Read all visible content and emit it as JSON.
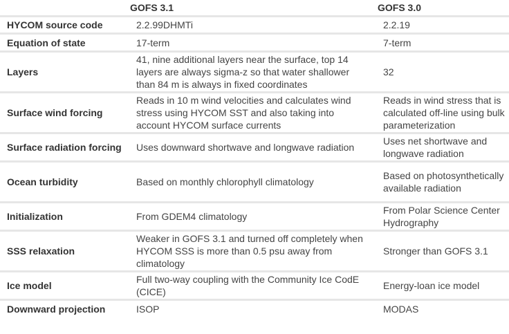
{
  "header": {
    "col1": "",
    "col2": "GOFS 3.1",
    "col3": "GOFS 3.0"
  },
  "rows": [
    {
      "label": "HYCOM source code",
      "gofs31": "2.2.99DHMTi",
      "gofs30": "2.2.19"
    },
    {
      "label": "Equation of state",
      "gofs31": "17-term",
      "gofs30": "7-term"
    },
    {
      "label": "Layers",
      "gofs31": "41, nine additional layers near the surface, top 14 layers are always sigma-z so that water shallower than 84 m is always in fixed coordinates",
      "gofs30": "32"
    },
    {
      "label": "Surface wind forcing",
      "gofs31": "Reads in 10 m wind velocities and calculates wind stress using HYCOM SST and also taking into account HYCOM surface currents",
      "gofs30": "Reads in wind stress that is calculated off-line using bulk parameterization"
    },
    {
      "label": "Surface radiation forcing",
      "gofs31": "Uses downward shortwave and longwave radiation",
      "gofs30": "Uses net shortwave and longwave radiation"
    },
    {
      "label": "Ocean turbidity",
      "gofs31": "Based on monthly chlorophyll climatology",
      "gofs30": "Based on photosynthetically available radiation"
    },
    {
      "label": "Initialization",
      "gofs31": "From GDEM4 climatology",
      "gofs30": "From Polar Science Center Hydrography"
    },
    {
      "label": "SSS relaxation",
      "gofs31": "Weaker in GOFS 3.1 and turned off completely when HYCOM SSS is more than 0.5 psu away from climatology",
      "gofs30": "Stronger than GOFS 3.1"
    },
    {
      "label": "Ice model",
      "gofs31": "Full two-way coupling with the Community Ice CodE (CICE)",
      "gofs30": "Energy-loan ice model"
    },
    {
      "label": "Downward projection",
      "gofs31": "ISOP",
      "gofs30": "MODAS"
    }
  ]
}
